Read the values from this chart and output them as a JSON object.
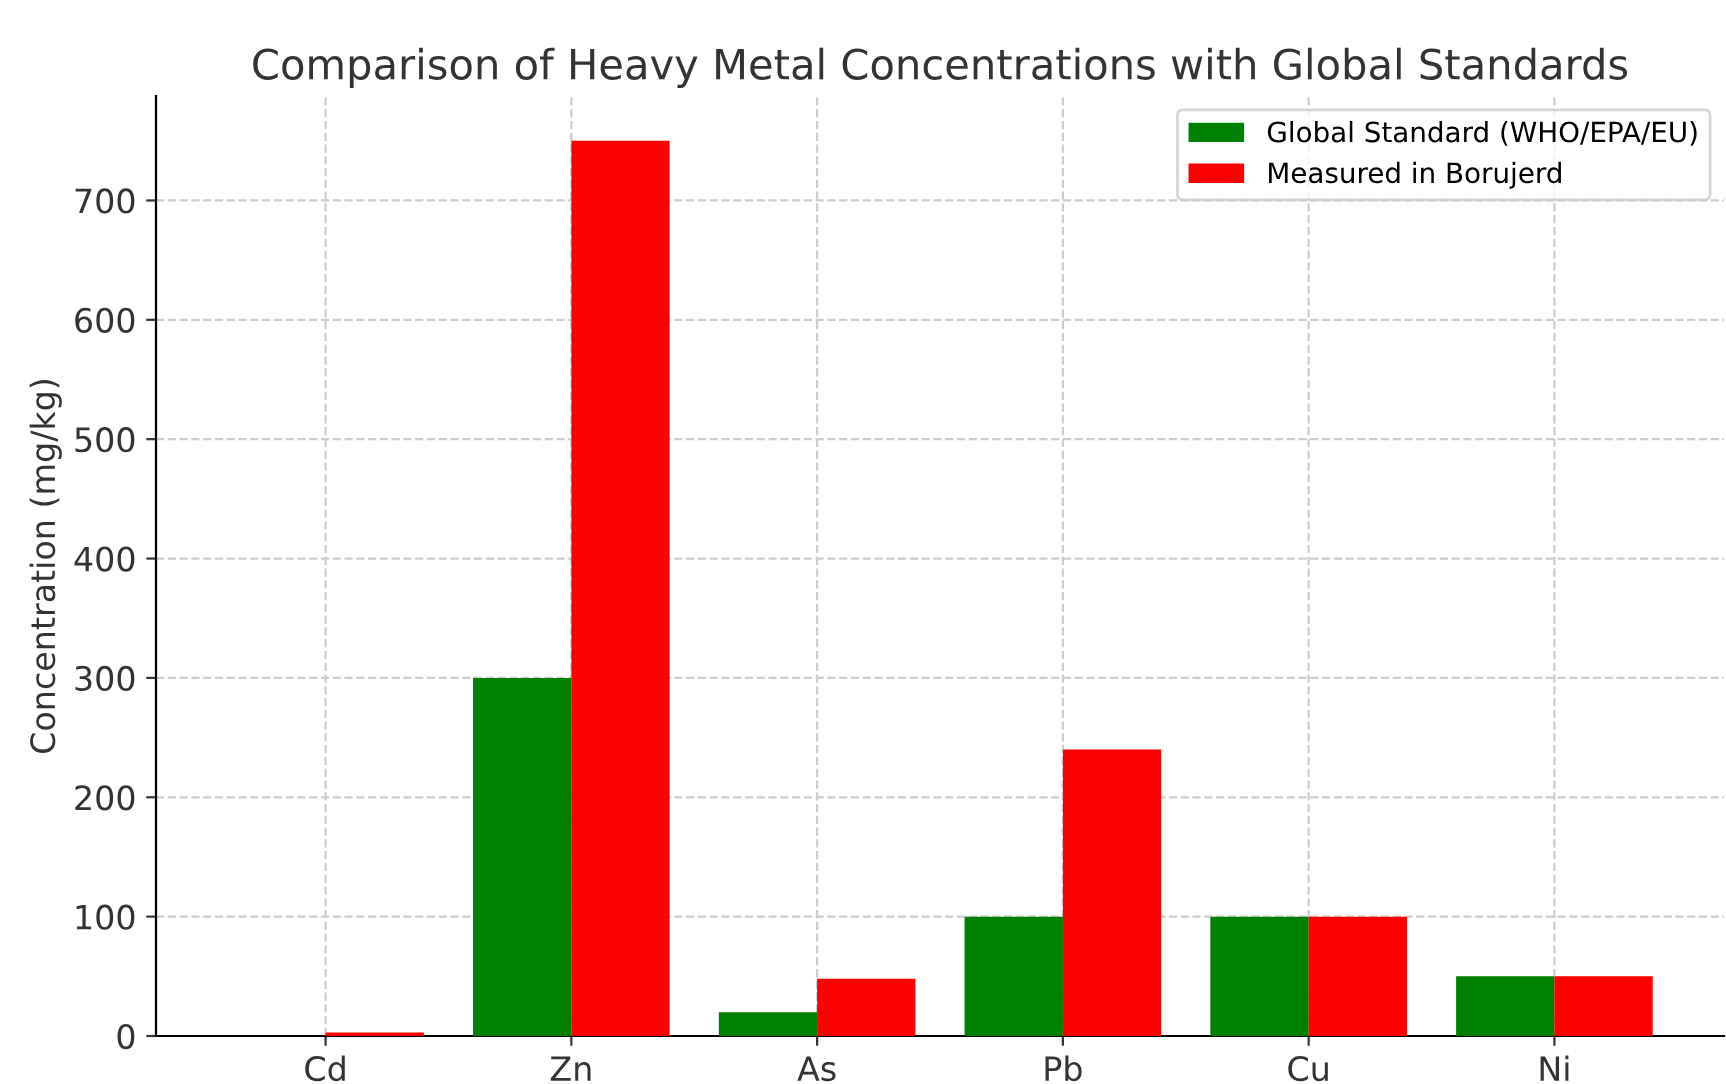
{
  "chart_data": {
    "type": "bar",
    "title": "Comparison of Heavy Metal Concentrations with Global Standards",
    "ylabel": "Concentration (mg/kg)",
    "categories": [
      "Cd",
      "Zn",
      "As",
      "Pb",
      "Cu",
      "Ni"
    ],
    "series": [
      {
        "name": "Global Standard (WHO/EPA/EU)",
        "color": "#008000",
        "values": [
          0,
          300,
          20,
          100,
          100,
          50
        ]
      },
      {
        "name": "Measured in Borujerd",
        "color": "#ff0000",
        "values": [
          3,
          750,
          48,
          240,
          100,
          50
        ]
      }
    ],
    "ylim": [
      0,
      787.5
    ],
    "yticks": [
      0,
      100,
      200,
      300,
      400,
      500,
      600,
      700
    ],
    "grid": true,
    "legend": "top right"
  }
}
